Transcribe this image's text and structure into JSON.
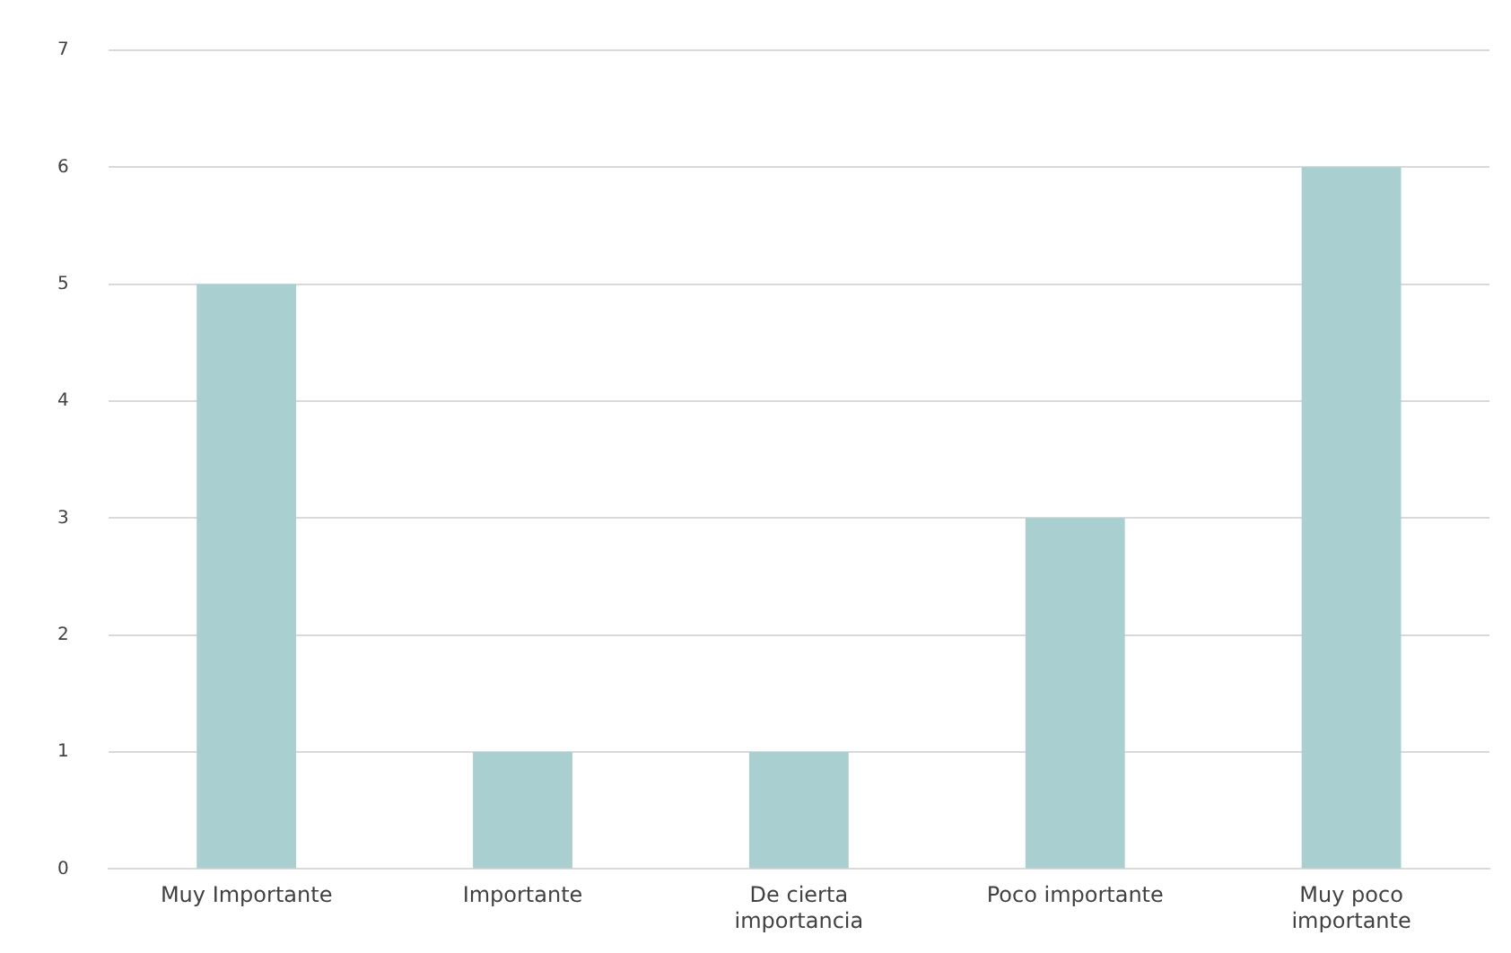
{
  "chart_data": {
    "type": "bar",
    "categories": [
      "Muy Importante",
      "Importante",
      "De cierta importancia",
      "Poco importante",
      "Muy poco importante"
    ],
    "values": [
      5,
      1,
      1,
      3,
      6
    ],
    "color": "#a9cfd1",
    "ylim": [
      0,
      7
    ],
    "yticks": [
      0,
      1,
      2,
      3,
      4,
      5,
      6,
      7
    ],
    "grid": "y",
    "legend": false
  }
}
